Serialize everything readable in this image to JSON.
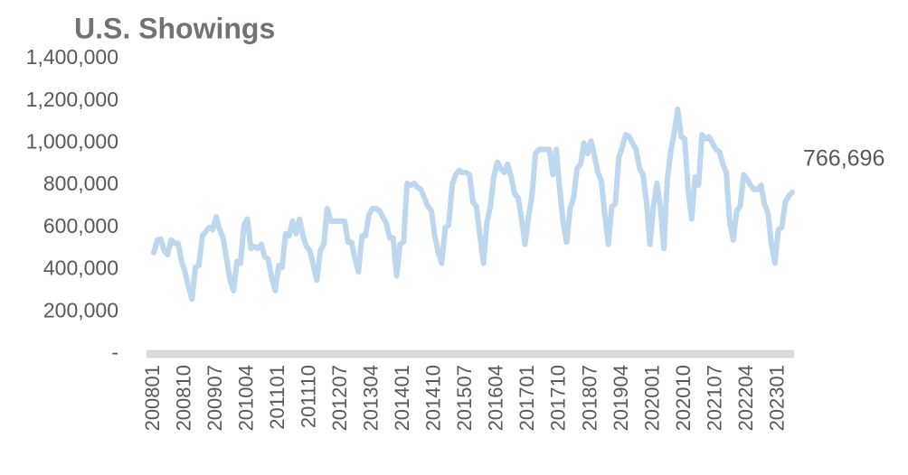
{
  "chart_data": {
    "type": "line",
    "title": "U.S. Showings",
    "categories": [
      "200801",
      null,
      null,
      null,
      null,
      null,
      null,
      null,
      null,
      "200810",
      null,
      null,
      null,
      null,
      null,
      null,
      null,
      null,
      "200907",
      null,
      null,
      null,
      null,
      null,
      null,
      null,
      null,
      "201004",
      null,
      null,
      null,
      null,
      null,
      null,
      null,
      null,
      "201101",
      null,
      null,
      null,
      null,
      null,
      null,
      null,
      null,
      "201110",
      null,
      null,
      null,
      null,
      null,
      null,
      null,
      null,
      "201207",
      null,
      null,
      null,
      null,
      null,
      null,
      null,
      null,
      "201304",
      null,
      null,
      null,
      null,
      null,
      null,
      null,
      null,
      "201401",
      null,
      null,
      null,
      null,
      null,
      null,
      null,
      null,
      "201410",
      null,
      null,
      null,
      null,
      null,
      null,
      null,
      null,
      "201507",
      null,
      null,
      null,
      null,
      null,
      null,
      null,
      null,
      "201604",
      null,
      null,
      null,
      null,
      null,
      null,
      null,
      null,
      "201701",
      null,
      null,
      null,
      null,
      null,
      null,
      null,
      null,
      "201710",
      null,
      null,
      null,
      null,
      null,
      null,
      null,
      null,
      "201807",
      null,
      null,
      null,
      null,
      null,
      null,
      null,
      null,
      "201904",
      null,
      null,
      null,
      null,
      null,
      null,
      null,
      null,
      "202001",
      null,
      null,
      null,
      null,
      null,
      null,
      null,
      null,
      "202010",
      null,
      null,
      null,
      null,
      null,
      null,
      null,
      null,
      "202107",
      null,
      null,
      null,
      null,
      null,
      null,
      null,
      null,
      "202204",
      null,
      null,
      null,
      null,
      null,
      null,
      null,
      null,
      "202301",
      null,
      null,
      null,
      null
    ],
    "series": [
      {
        "name": "U.S. Showings",
        "color": "#bdd7ee",
        "values": [
          480000,
          540000,
          545000,
          490000,
          470000,
          540000,
          525000,
          525000,
          440000,
          390000,
          320000,
          260000,
          410000,
          420000,
          560000,
          580000,
          600000,
          590000,
          650000,
          590000,
          550000,
          450000,
          350000,
          300000,
          440000,
          430000,
          610000,
          640000,
          500000,
          510000,
          500000,
          520000,
          460000,
          450000,
          360000,
          300000,
          420000,
          410000,
          570000,
          560000,
          630000,
          570000,
          640000,
          560000,
          510000,
          490000,
          420000,
          350000,
          490000,
          520000,
          690000,
          630000,
          630000,
          630000,
          630000,
          630000,
          530000,
          530000,
          450000,
          390000,
          560000,
          560000,
          660000,
          690000,
          690000,
          680000,
          650000,
          620000,
          550000,
          550000,
          370000,
          520000,
          530000,
          810000,
          800000,
          810000,
          790000,
          780000,
          740000,
          700000,
          680000,
          560000,
          480000,
          430000,
          600000,
          610000,
          800000,
          850000,
          870000,
          860000,
          860000,
          850000,
          720000,
          700000,
          560000,
          430000,
          620000,
          700000,
          840000,
          910000,
          880000,
          860000,
          900000,
          840000,
          760000,
          740000,
          640000,
          520000,
          650000,
          750000,
          950000,
          970000,
          970000,
          970000,
          970000,
          850000,
          970000,
          780000,
          620000,
          530000,
          690000,
          740000,
          880000,
          900000,
          1000000,
          950000,
          1010000,
          940000,
          860000,
          820000,
          660000,
          520000,
          700000,
          710000,
          930000,
          980000,
          1040000,
          1030000,
          1000000,
          970000,
          880000,
          850000,
          720000,
          520000,
          700000,
          810000,
          700000,
          500000,
          830000,
          960000,
          1050000,
          1160000,
          1030000,
          1020000,
          780000,
          640000,
          840000,
          800000,
          1040000,
          1020000,
          1030000,
          1000000,
          970000,
          960000,
          900000,
          860000,
          620000,
          540000,
          680000,
          700000,
          850000,
          830000,
          800000,
          780000,
          780000,
          800000,
          710000,
          670000,
          520000,
          430000,
          590000,
          600000,
          720000,
          750000,
          766696
        ],
        "value_labels": [
          null,
          null,
          null,
          null,
          null,
          null,
          null,
          null,
          null,
          null,
          null,
          null,
          null,
          null,
          null,
          null,
          null,
          null,
          null,
          null,
          null,
          null,
          null,
          null,
          null,
          null,
          null,
          null,
          null,
          null,
          null,
          null,
          null,
          null,
          null,
          null,
          null,
          null,
          null,
          null,
          null,
          null,
          null,
          null,
          null,
          null,
          null,
          null,
          null,
          null,
          null,
          null,
          null,
          null,
          null,
          null,
          null,
          null,
          null,
          null,
          null,
          null,
          null,
          null,
          null,
          null,
          null,
          null,
          null,
          null,
          null,
          null,
          null,
          null,
          null,
          null,
          null,
          null,
          null,
          null,
          null,
          null,
          null,
          null,
          null,
          null,
          null,
          null,
          null,
          null,
          null,
          null,
          null,
          null,
          null,
          null,
          null,
          null,
          null,
          null,
          null,
          null,
          null,
          null,
          null,
          null,
          null,
          null,
          null,
          null,
          null,
          null,
          null,
          null,
          null,
          null,
          null,
          null,
          null,
          null,
          null,
          null,
          null,
          null,
          null,
          null,
          null,
          null,
          null,
          null,
          null,
          null,
          null,
          null,
          null,
          null,
          null,
          null,
          null,
          null,
          null,
          null,
          null,
          null,
          null,
          null,
          null,
          null,
          null,
          null,
          null,
          null,
          null,
          null,
          null,
          null,
          null,
          null,
          null,
          null,
          null,
          null,
          null,
          null,
          null,
          null,
          null,
          null,
          null,
          null,
          null,
          null,
          null,
          null,
          null,
          null,
          null,
          null,
          null,
          null,
          null,
          null,
          null,
          null,
          "766,696"
        ]
      }
    ],
    "ylim": [
      0,
      1400000
    ],
    "yticks": [
      {
        "value": 0,
        "label": "-"
      },
      {
        "value": 200000,
        "label": "200,000"
      },
      {
        "value": 400000,
        "label": "400,000"
      },
      {
        "value": 600000,
        "label": "600,000"
      },
      {
        "value": 800000,
        "label": "800,000"
      },
      {
        "value": 1000000,
        "label": "1,000,000"
      },
      {
        "value": 1200000,
        "label": "1,200,000"
      },
      {
        "value": 1400000,
        "label": "1,400,000"
      }
    ],
    "grid": false
  }
}
